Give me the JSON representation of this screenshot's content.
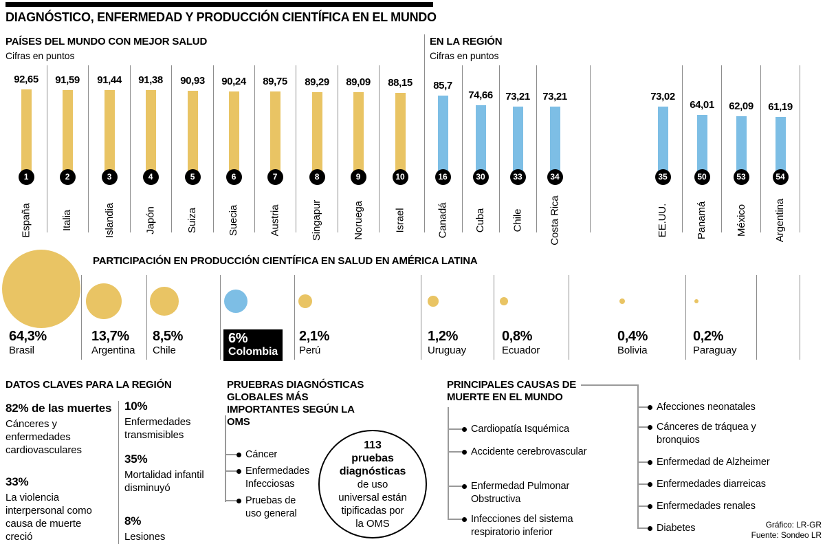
{
  "header": {
    "title": "DIAGNÓSTICO, ENFERMEDAD Y PRODUCCIÓN CIENTÍFICA EN EL MUNDO"
  },
  "world_chart": {
    "title": "PAÍSES DEL MUNDO CON MEJOR SALUD",
    "subtitle": "Cifras en puntos",
    "bars": [
      {
        "country": "España",
        "value": "92,65",
        "rank": "1",
        "v": 92.65
      },
      {
        "country": "Italia",
        "value": "91,59",
        "rank": "2",
        "v": 91.59
      },
      {
        "country": "Islandia",
        "value": "91,44",
        "rank": "3",
        "v": 91.44
      },
      {
        "country": "Japón",
        "value": "91,38",
        "rank": "4",
        "v": 91.38
      },
      {
        "country": "Suiza",
        "value": "90,93",
        "rank": "5",
        "v": 90.93
      },
      {
        "country": "Suecia",
        "value": "90,24",
        "rank": "6",
        "v": 90.24
      },
      {
        "country": "Austria",
        "value": "89,75",
        "rank": "7",
        "v": 89.75
      },
      {
        "country": "Singapur",
        "value": "89,29",
        "rank": "8",
        "v": 89.29
      },
      {
        "country": "Noruega",
        "value": "89,09",
        "rank": "9",
        "v": 89.09
      },
      {
        "country": "Israel",
        "value": "88,15",
        "rank": "10",
        "v": 88.15
      }
    ]
  },
  "region_chart": {
    "title": "EN LA REGIÓN",
    "subtitle": "Cifras en puntos",
    "bars": [
      {
        "country": "Canadá",
        "value": "85,7",
        "rank": "16",
        "v": 85.7
      },
      {
        "country": "Cuba",
        "value": "74,66",
        "rank": "30",
        "v": 74.66
      },
      {
        "country": "Chile",
        "value": "73,21",
        "rank": "33",
        "v": 73.21
      },
      {
        "country": "Costa Rica",
        "value": "73,21",
        "rank": "34",
        "v": 73.21
      },
      {
        "country": "EE.UU.",
        "value": "73,02",
        "rank": "35",
        "v": 73.02
      },
      {
        "country": "Panamá",
        "value": "64,01",
        "rank": "50",
        "v": 64.01
      },
      {
        "country": "México",
        "value": "62,09",
        "rank": "53",
        "v": 62.09
      },
      {
        "country": "Argentina",
        "value": "61,19",
        "rank": "54",
        "v": 61.19
      }
    ]
  },
  "bubble_chart": {
    "title": "PARTICIPACIÓN EN PRODUCCIÓN CIENTÍFICA EN SALUD EN AMÉRICA LATINA",
    "items": [
      {
        "country": "Brasil",
        "pct": "64,3%",
        "v": 64.3,
        "highlight": false
      },
      {
        "country": "Argentina",
        "pct": "13,7%",
        "v": 13.7,
        "highlight": false
      },
      {
        "country": "Chile",
        "pct": "8,5%",
        "v": 8.5,
        "highlight": false
      },
      {
        "country": "Colombia",
        "pct": "6%",
        "v": 6,
        "highlight": true
      },
      {
        "country": "Perú",
        "pct": "2,1%",
        "v": 2.1,
        "highlight": false
      },
      {
        "country": "Uruguay",
        "pct": "1,2%",
        "v": 1.2,
        "highlight": false
      },
      {
        "country": "Ecuador",
        "pct": "0,8%",
        "v": 0.8,
        "highlight": false
      },
      {
        "country": "Bolivia",
        "pct": "0,4%",
        "v": 0.4,
        "highlight": false
      },
      {
        "country": "Paraguay",
        "pct": "0,2%",
        "v": 0.2,
        "highlight": false
      }
    ]
  },
  "key_facts": {
    "title": "DATOS CLAVES PARA LA REGIÓN",
    "col1": [
      {
        "stat": "82% de las muertes",
        "desc": "Cánceres y enfermedades cardiovasculares"
      },
      {
        "stat": "33%",
        "desc": "La violencia interpersonal como causa de muerte creció"
      }
    ],
    "col2": [
      {
        "stat": "10%",
        "desc": "Enfermedades transmisibles"
      },
      {
        "stat": "35%",
        "desc": "Mortalidad infantil disminuyó"
      },
      {
        "stat": "8%",
        "desc": "Lesiones"
      }
    ]
  },
  "diagnostics": {
    "title": "PRUEBRAS DIAGNÓSTICAS GLOBALES MÁS IMPORTANTES SEGÚN LA OMS",
    "items": [
      "Cáncer",
      "Enfermedades Infecciosas",
      "Pruebas de uso general"
    ],
    "circle": {
      "bold_lines": [
        "113",
        "pruebas",
        "diagnósticas"
      ],
      "lines": [
        "de uso",
        "universal están",
        "tipificadas por",
        "la OMS"
      ]
    }
  },
  "death_causes": {
    "title": "PRINCIPALES CAUSAS DE MUERTE EN EL MUNDO",
    "col1": [
      "Cardiopatía Isquémica",
      "Accidente cerebrovascular",
      "Enfermedad Pulmonar Obstructiva",
      "Infecciones del sistema respiratorio inferior"
    ],
    "col2": [
      "Afecciones neonatales",
      "Cánceres de tráquea y bronquios",
      "Enfermedad de Alzheimer",
      "Enfermedades diarreicas",
      "Enfermedades renales",
      "Diabetes"
    ]
  },
  "credits": {
    "graphic": "Gráfico: LR-GR",
    "source": "Fuente: Sondeo LR"
  },
  "colors": {
    "bar_yellow": "#E9C464",
    "bar_blue": "#7DBEE5",
    "line_gray": "#8C8C8C",
    "black": "#000000"
  },
  "chart_data": [
    {
      "type": "bar",
      "title": "PAÍSES DEL MUNDO CON MEJOR SALUD",
      "ylabel": "Cifras en puntos",
      "categories": [
        "España",
        "Italia",
        "Islandia",
        "Japón",
        "Suiza",
        "Suecia",
        "Austria",
        "Singapur",
        "Noruega",
        "Israel"
      ],
      "values": [
        92.65,
        91.59,
        91.44,
        91.38,
        90.93,
        90.24,
        89.75,
        89.29,
        89.09,
        88.15
      ],
      "ranks": [
        1,
        2,
        3,
        4,
        5,
        6,
        7,
        8,
        9,
        10
      ],
      "bar_color": "#E9C464",
      "ylim": [
        0,
        100
      ],
      "grid": false,
      "legend": "none"
    },
    {
      "type": "bar",
      "title": "EN LA REGIÓN",
      "ylabel": "Cifras en puntos",
      "categories": [
        "Canadá",
        "Cuba",
        "Chile",
        "Costa Rica",
        "EE.UU.",
        "Panamá",
        "México",
        "Argentina"
      ],
      "values": [
        85.7,
        74.66,
        73.21,
        73.21,
        73.02,
        64.01,
        62.09,
        61.19
      ],
      "ranks": [
        16,
        30,
        33,
        34,
        35,
        50,
        53,
        54
      ],
      "bar_color": "#7DBEE5",
      "ylim": [
        0,
        100
      ],
      "grid": false,
      "legend": "none"
    },
    {
      "type": "scatter",
      "mark": "proportional-bubble",
      "title": "PARTICIPACIÓN EN PRODUCCIÓN CIENTÍFICA EN SALUD EN AMÉRICA LATINA",
      "categories": [
        "Brasil",
        "Argentina",
        "Chile",
        "Colombia",
        "Perú",
        "Uruguay",
        "Ecuador",
        "Bolivia",
        "Paraguay"
      ],
      "values": [
        64.3,
        13.7,
        8.5,
        6,
        2.1,
        1.2,
        0.8,
        0.4,
        0.2
      ],
      "unit": "%",
      "highlighted": "Colombia",
      "grid": false,
      "legend": "none"
    }
  ]
}
